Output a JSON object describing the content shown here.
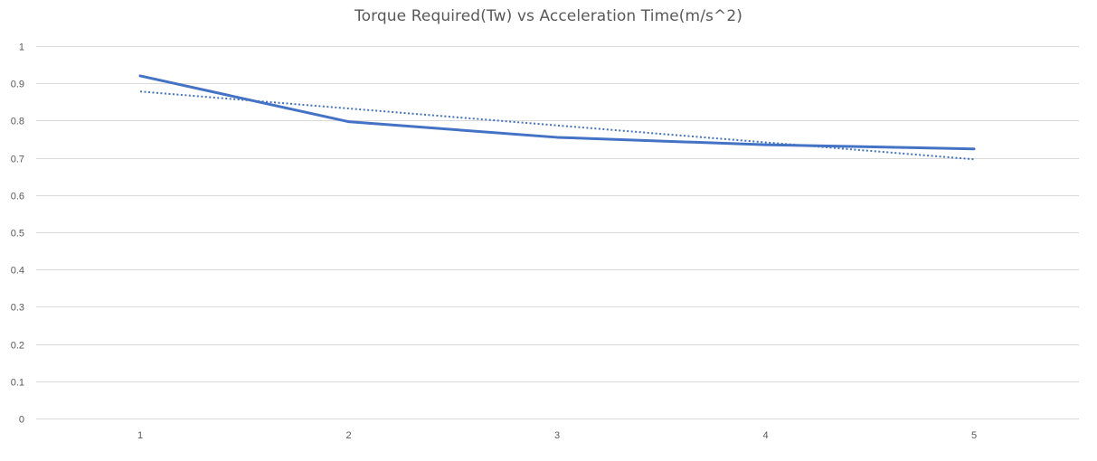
{
  "chart_data": {
    "type": "line",
    "title": "Torque Required(Tw) vs Acceleration Time(m/s^2)",
    "xlabel": "",
    "ylabel": "",
    "categories": [
      "1",
      "2",
      "3",
      "4",
      "5"
    ],
    "series": [
      {
        "values": [
          0.92,
          0.797,
          0.755,
          0.735,
          0.724
        ],
        "color": "#4472c4",
        "style": "solid"
      }
    ],
    "trendline": {
      "type": "linear",
      "values": [
        0.878,
        0.8325,
        0.787,
        0.7415,
        0.696
      ],
      "color": "#4472c4",
      "style": "dotted"
    },
    "ylim": [
      0,
      1
    ],
    "yticks": [
      "0",
      "0.1",
      "0.2",
      "0.3",
      "0.4",
      "0.5",
      "0.6",
      "0.7",
      "0.8",
      "0.9",
      "1"
    ],
    "grid": true,
    "legend": "none"
  }
}
